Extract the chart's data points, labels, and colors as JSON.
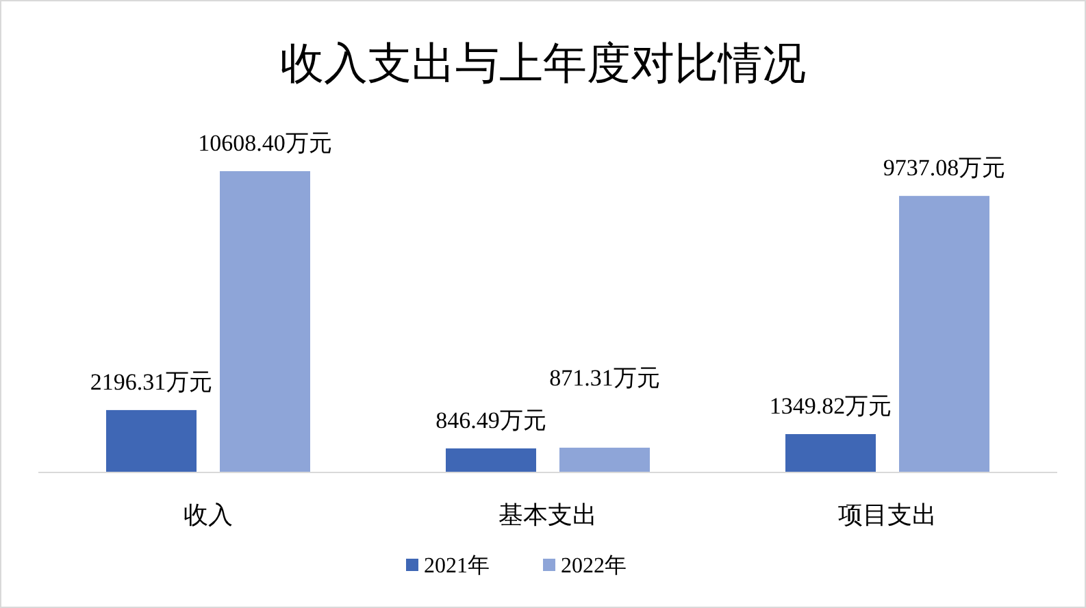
{
  "chart_data": {
    "type": "bar",
    "title": "收入支出与上年度对比情况",
    "categories": [
      "收入",
      "基本支出",
      "项目支出"
    ],
    "series": [
      {
        "name": "2021年",
        "color": "#3f67b5",
        "values": [
          2196.31,
          846.49,
          1349.82
        ],
        "value_labels": [
          "2196.31万元",
          "846.49万元",
          "1349.82万元"
        ]
      },
      {
        "name": "2022年",
        "color": "#8ea5d8",
        "values": [
          10608.4,
          871.31,
          9737.08
        ],
        "value_labels": [
          "10608.40万元",
          "871.31万元",
          "9737.08万元"
        ]
      }
    ],
    "legend": "bottom"
  }
}
